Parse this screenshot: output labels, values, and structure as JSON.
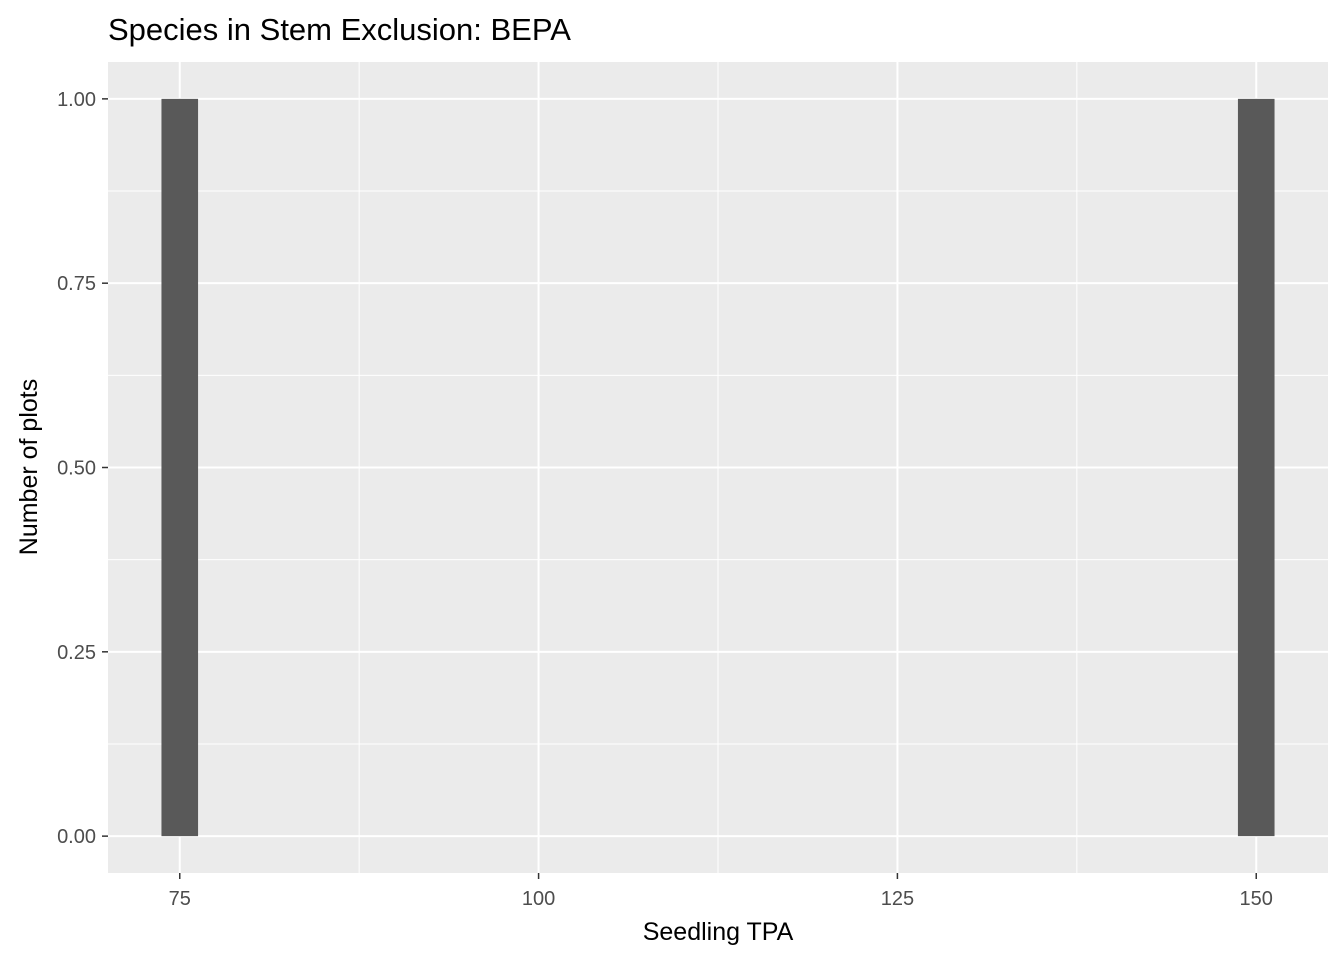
{
  "chart_data": {
    "type": "bar",
    "title": "Species in Stem Exclusion: BEPA",
    "xlabel": "Seedling TPA",
    "ylabel": "Number of plots",
    "xlim": [
      70,
      155
    ],
    "ylim": [
      -0.05,
      1.05
    ],
    "x_ticks": [
      75,
      100,
      125,
      150
    ],
    "x_tick_labels": [
      "75",
      "100",
      "125",
      "150"
    ],
    "y_ticks": [
      0,
      0.25,
      0.5,
      0.75,
      1.0
    ],
    "y_tick_labels": [
      "0.00",
      "0.25",
      "0.50",
      "0.75",
      "1.00"
    ],
    "bin_width": 2.55,
    "bars": [
      {
        "x": 75,
        "count": 1
      },
      {
        "x": 150,
        "count": 1
      }
    ],
    "grid": true,
    "colors": {
      "panel_background": "#ebebeb",
      "grid": "#ffffff",
      "bar": "#595959",
      "tick_label": "#4d4d4d",
      "tick_mark": "#333333"
    }
  }
}
